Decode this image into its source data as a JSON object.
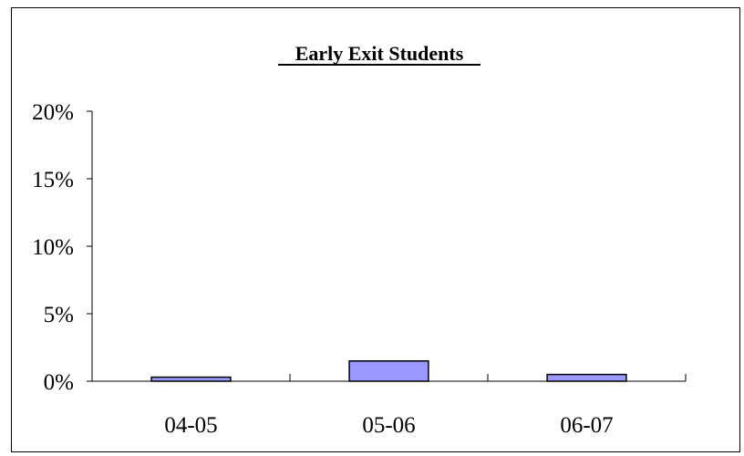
{
  "chart_data": {
    "type": "bar",
    "title": "Early Exit Students",
    "xlabel": "",
    "ylabel": "",
    "categories": [
      "04-05",
      "05-06",
      "06-07"
    ],
    "values": [
      0.3,
      1.5,
      0.5
    ],
    "ylim": [
      0,
      20
    ],
    "yticks": [
      "0%",
      "5%",
      "10%",
      "15%",
      "20%"
    ],
    "ytick_values": [
      0,
      5,
      10,
      15,
      20
    ],
    "grid": false,
    "legend": "none",
    "colors": {
      "bar_fill": "#9999ff",
      "bar_stroke": "#000000",
      "axis": "#000000"
    }
  }
}
